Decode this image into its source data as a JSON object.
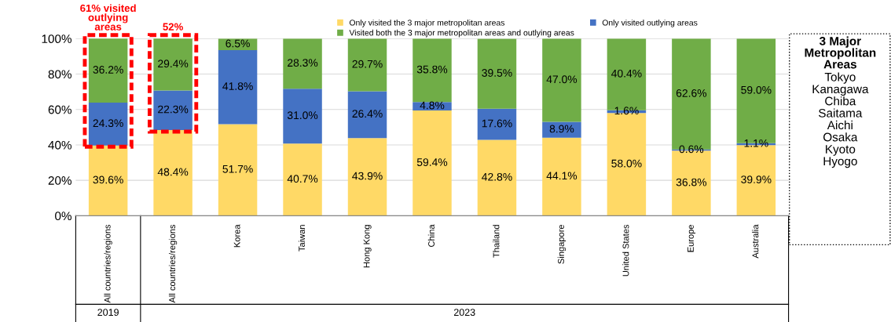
{
  "chart_data": {
    "type": "bar",
    "stacked": true,
    "categories": [
      "All countries/regions",
      "All countries/regions",
      "Korea",
      "Taiwan",
      "Hong Kong",
      "China",
      "Thailand",
      "Singapore",
      "United States",
      "Europe",
      "Australia"
    ],
    "series": [
      {
        "name": "Only visited the 3 major metropolitan areas",
        "color": "#ffd966",
        "values": [
          39.6,
          48.4,
          51.7,
          40.7,
          43.9,
          59.4,
          42.8,
          44.1,
          58.0,
          36.8,
          39.9
        ],
        "value_labels": [
          "39.6%",
          "48.4%",
          "51.7%",
          "40.7%",
          "43.9%",
          "59.4%",
          "42.8%",
          "44.1%",
          "58.0%",
          "36.8%",
          "39.9%"
        ]
      },
      {
        "name": "Only visited outlying areas",
        "color": "#4472c4",
        "values": [
          24.3,
          22.3,
          41.8,
          31.0,
          26.4,
          4.8,
          17.6,
          8.9,
          1.6,
          0.6,
          1.1
        ],
        "value_labels": [
          "24.3%",
          "22.3%",
          "41.8%",
          "31.0%",
          "26.4%",
          "4.8%",
          "17.6%",
          "8.9%",
          "1.6%",
          "0.6%",
          "1.1%"
        ]
      },
      {
        "name": "Visited both the 3 major metropolitan areas and outlying areas",
        "color": "#70ad47",
        "values": [
          36.2,
          29.4,
          6.5,
          28.3,
          29.7,
          35.8,
          39.5,
          47.0,
          40.4,
          62.6,
          59.0
        ],
        "value_labels": [
          "36.2%",
          "29.4%",
          "6.5%",
          "28.3%",
          "29.7%",
          "35.8%",
          "39.5%",
          "47.0%",
          "40.4%",
          "62.6%",
          "59.0%"
        ]
      }
    ],
    "ylim": [
      0,
      100
    ],
    "yticks": [
      {
        "value": 0,
        "label": "0%"
      },
      {
        "value": 20,
        "label": "20%"
      },
      {
        "value": 40,
        "label": "40%"
      },
      {
        "value": 60,
        "label": "60%"
      },
      {
        "value": 80,
        "label": "80%"
      },
      {
        "value": 100,
        "label": "100%"
      }
    ],
    "grid": "y",
    "legend": "top",
    "annotations": [
      "61% visited outlying areas",
      "52%",
      "3 Major Metropolitan Areas\nTokyo\nKanagawa\nChiba\nSaitama\nAichi\nOsaka\nKyoto\nHyogo",
      "2019",
      "2023"
    ]
  }
}
